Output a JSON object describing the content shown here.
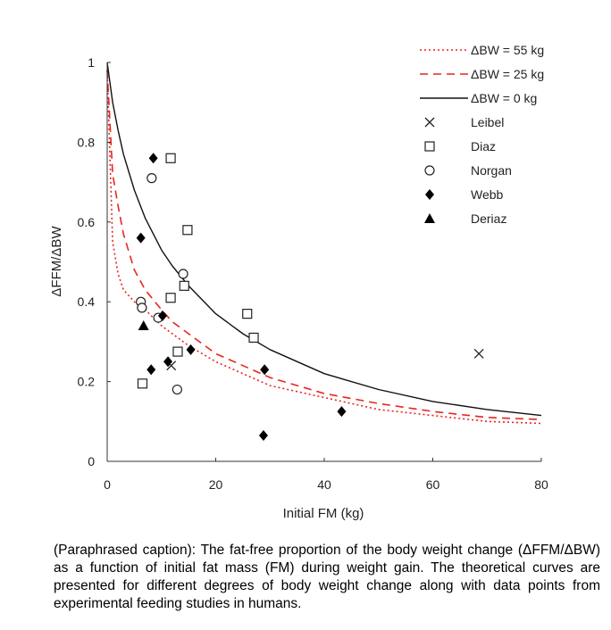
{
  "chart_data": {
    "type": "scatter",
    "xlabel": "Initial FM (kg)",
    "ylabel": "ΔFFM/ΔBW",
    "xlim": [
      0,
      80
    ],
    "ylim": [
      0,
      1
    ],
    "xticks": [
      "0",
      "20",
      "40",
      "60",
      "80"
    ],
    "yticks": [
      "0",
      "0.2",
      "0.4",
      "0.6",
      "0.8",
      "1"
    ],
    "legend_position": "top-right",
    "curves": [
      {
        "name": "ΔBW = 55 kg",
        "style": "dotted",
        "color": "#e8251f",
        "x": [
          0,
          1,
          2,
          3,
          5,
          7,
          10,
          12,
          15,
          20,
          25,
          30,
          40,
          50,
          60,
          70,
          80
        ],
        "y": [
          0.98,
          0.55,
          0.47,
          0.43,
          0.4,
          0.38,
          0.34,
          0.32,
          0.29,
          0.25,
          0.22,
          0.19,
          0.16,
          0.13,
          0.115,
          0.1,
          0.095
        ]
      },
      {
        "name": "ΔBW = 25 kg",
        "style": "dashed",
        "color": "#e8251f",
        "x": [
          0,
          1,
          2,
          3,
          5,
          7,
          10,
          12,
          15,
          20,
          25,
          30,
          40,
          50,
          60,
          70,
          80
        ],
        "y": [
          0.98,
          0.72,
          0.64,
          0.57,
          0.48,
          0.43,
          0.38,
          0.35,
          0.32,
          0.27,
          0.24,
          0.21,
          0.17,
          0.145,
          0.125,
          0.11,
          0.105
        ]
      },
      {
        "name": "ΔBW = 0 kg",
        "style": "solid",
        "color": "#111111",
        "x": [
          0,
          1,
          2,
          3,
          5,
          7,
          10,
          12,
          15,
          20,
          25,
          30,
          40,
          50,
          60,
          70,
          80
        ],
        "y": [
          1.0,
          0.9,
          0.83,
          0.77,
          0.68,
          0.61,
          0.53,
          0.49,
          0.44,
          0.37,
          0.32,
          0.28,
          0.22,
          0.18,
          0.15,
          0.13,
          0.115
        ]
      }
    ],
    "series": [
      {
        "name": "Leibel",
        "marker": "x",
        "x": [
          11.8,
          68.5
        ],
        "y": [
          0.24,
          0.27
        ]
      },
      {
        "name": "Diaz",
        "marker": "open-square",
        "x": [
          11.7,
          14.8,
          14.2,
          11.7,
          25.8,
          27.0,
          13.0,
          6.5
        ],
        "y": [
          0.76,
          0.58,
          0.44,
          0.41,
          0.37,
          0.31,
          0.275,
          0.195
        ]
      },
      {
        "name": "Norgan",
        "marker": "open-circle",
        "x": [
          8.2,
          14.0,
          6.2,
          6.4,
          9.4,
          12.9
        ],
        "y": [
          0.71,
          0.47,
          0.4,
          0.385,
          0.36,
          0.18
        ]
      },
      {
        "name": "Webb",
        "marker": "filled-diamond",
        "x": [
          8.5,
          6.2,
          10.2,
          11.2,
          15.4,
          8.1,
          29.0,
          43.2,
          28.8
        ],
        "y": [
          0.76,
          0.56,
          0.365,
          0.25,
          0.28,
          0.23,
          0.23,
          0.125,
          0.065
        ]
      },
      {
        "name": "Deriaz",
        "marker": "filled-triangle",
        "x": [
          6.7
        ],
        "y": [
          0.34
        ]
      }
    ]
  },
  "caption": "(Paraphrased caption): The fat-free proportion of the body weight change (ΔFFM/ΔBW) as a function of initial fat mass (FM) during weight gain. The theoretical curves are presented for different degrees of body weight change along with data points from experimental feeding studies in humans."
}
